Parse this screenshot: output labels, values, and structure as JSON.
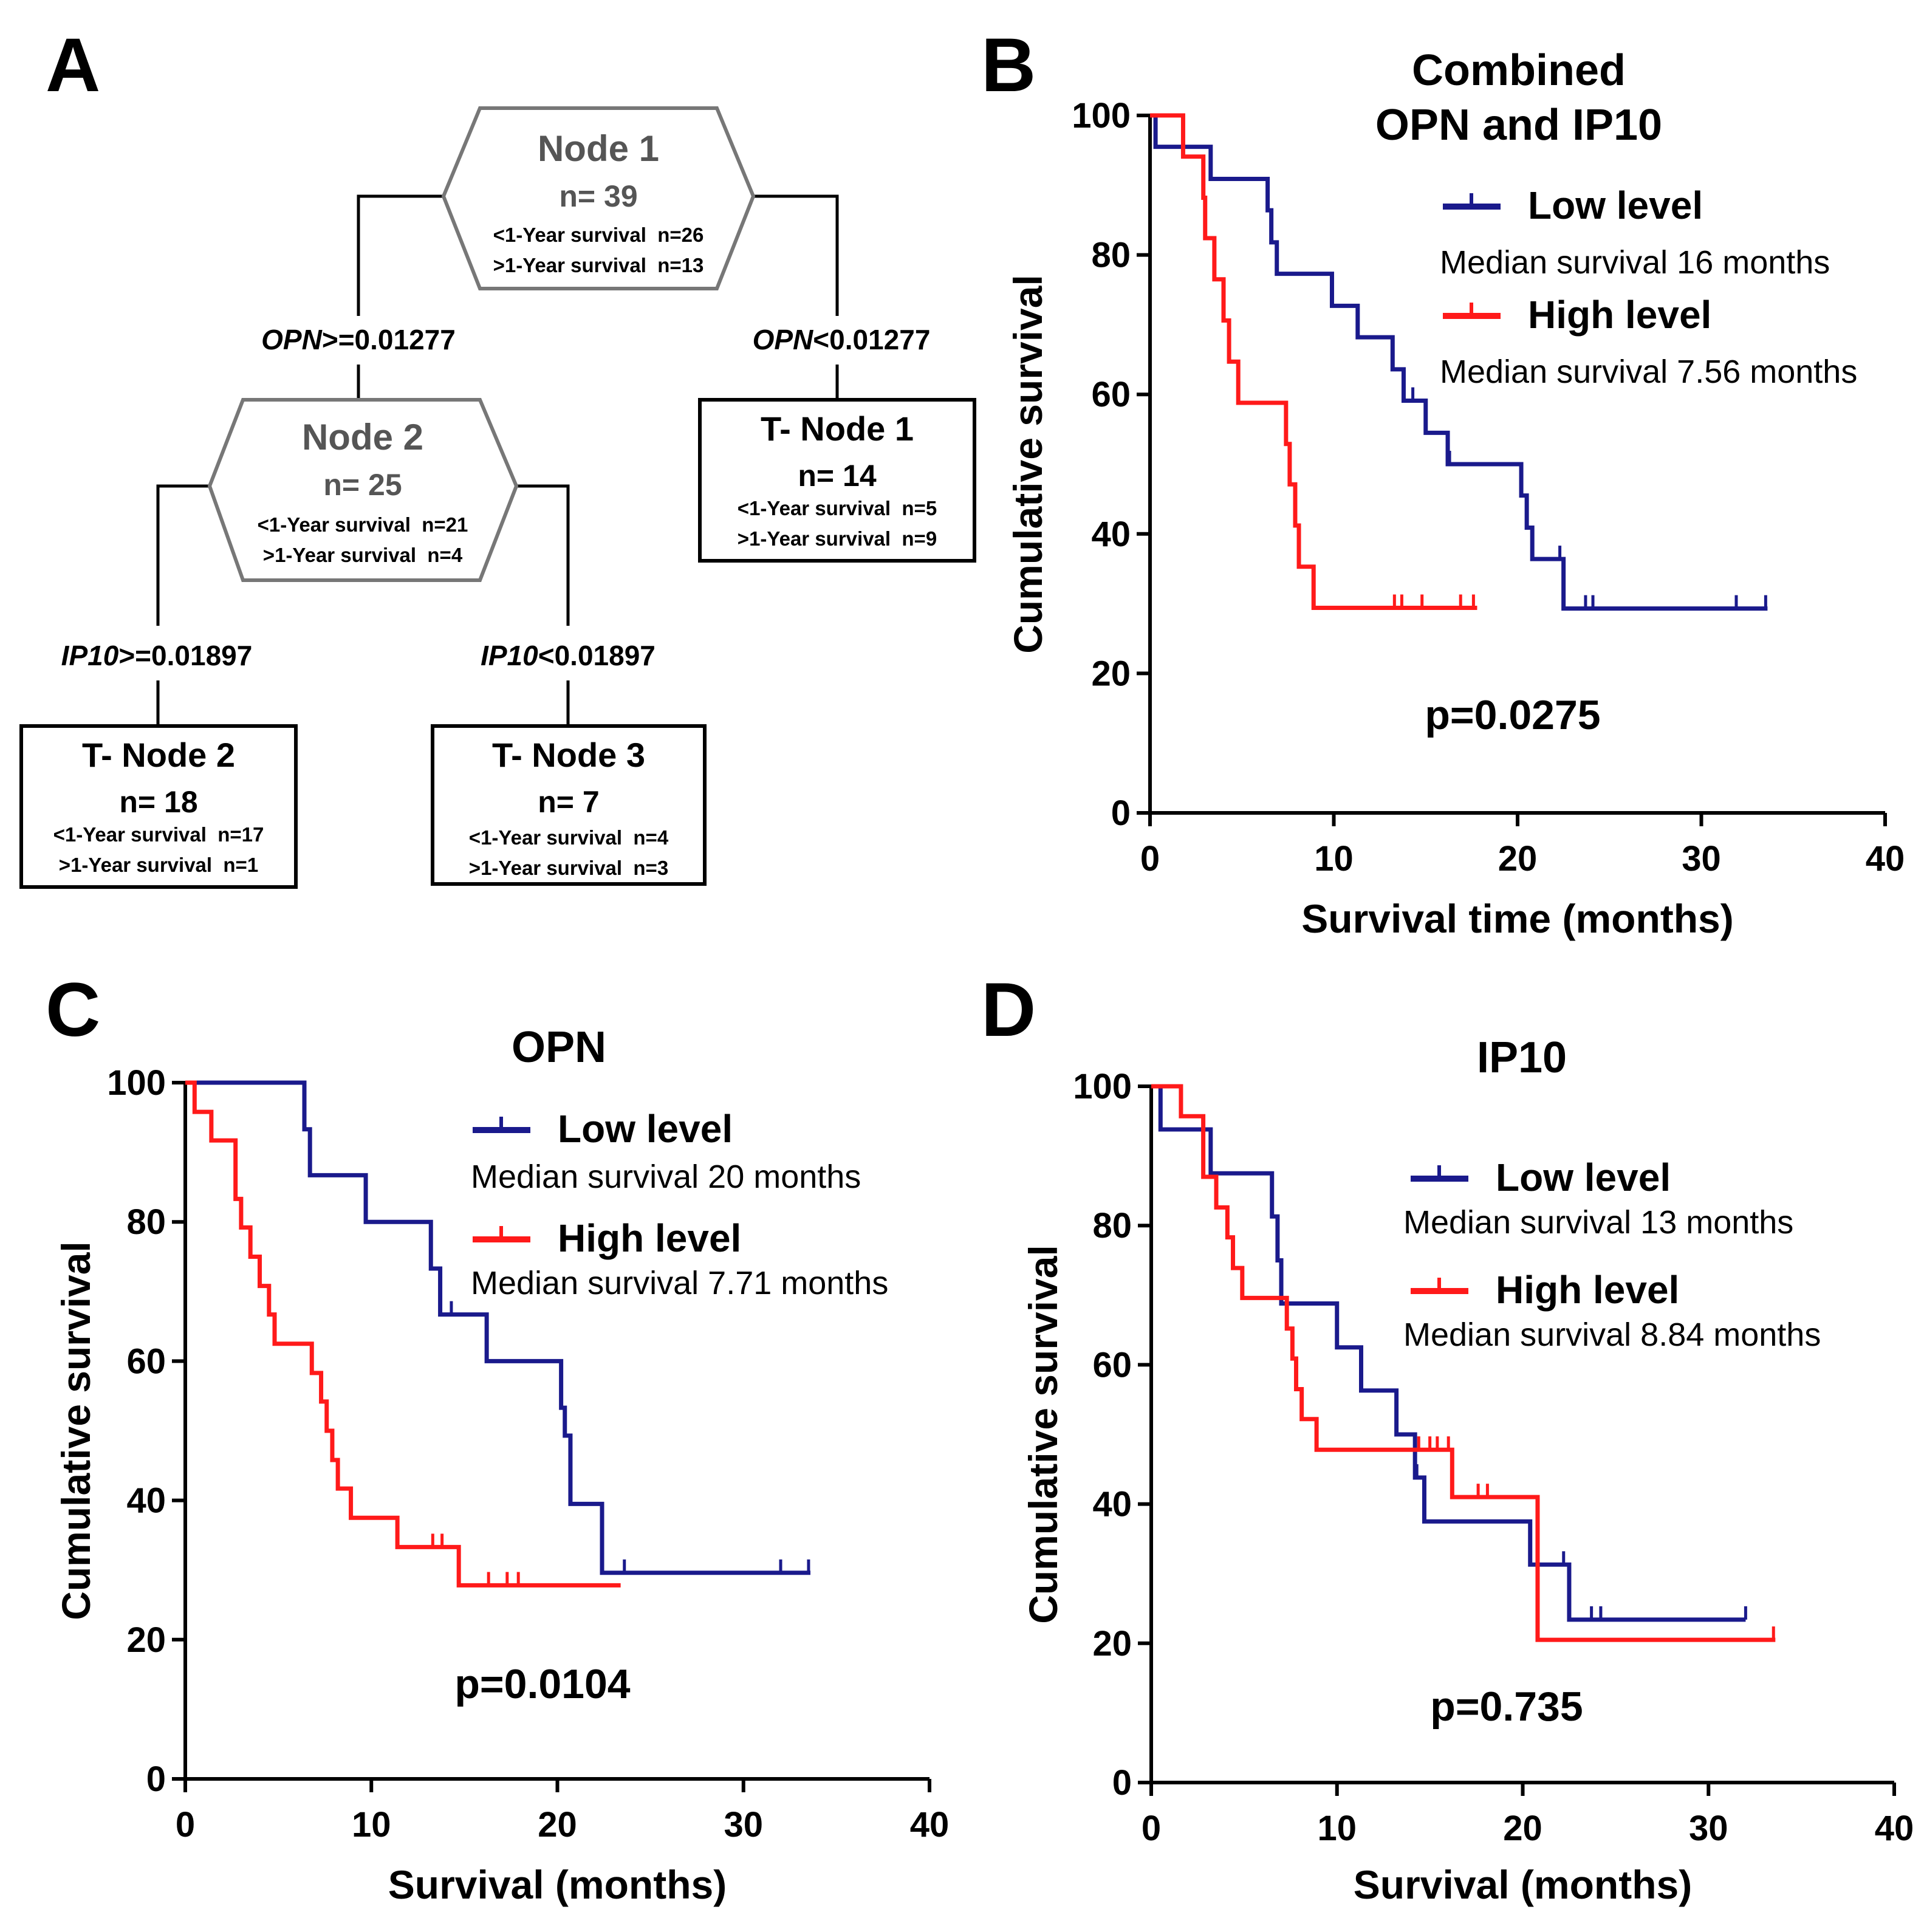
{
  "panel_a": {
    "letter": "A",
    "nodes": [
      {
        "title": "Node 1",
        "n": "n= 39",
        "line1": "<1-Year survival  n=26",
        "line2": ">1-Year survival  n=13"
      },
      {
        "title": "Node 2",
        "n": "n= 25",
        "line1": "<1-Year survival  n=21",
        "line2": ">1-Year survival  n=4"
      }
    ],
    "terminals": [
      {
        "title": "T- Node 1",
        "n": "n= 14",
        "line1": "<1-Year survival  n=5",
        "line2": ">1-Year survival  n=9"
      },
      {
        "title": "T- Node 2",
        "n": "n= 18",
        "line1": "<1-Year survival  n=17",
        "line2": ">1-Year survival  n=1"
      },
      {
        "title": "T- Node 3",
        "n": "n= 7",
        "line1": "<1-Year survival  n=4",
        "line2": ">1-Year survival  n=3"
      }
    ],
    "splits": [
      {
        "var": "OPN",
        "rule": ">=0.01277"
      },
      {
        "var": "OPN",
        "rule": "<0.01277"
      },
      {
        "var": "IP10",
        "rule": ">=0.01897"
      },
      {
        "var": "IP10",
        "rule": "<0.01897"
      }
    ]
  },
  "colors": {
    "low": "#1a1a8c",
    "high": "#ff1a1a",
    "axis": "#000000",
    "node_border": "#777777"
  },
  "chart_data": [
    {
      "letter": "B",
      "type": "line",
      "title_lines": [
        "Combined",
        "OPN and IP10"
      ],
      "xlabel": "Survival time (months)",
      "ylabel": "Cumulative survival",
      "xlim": [
        0,
        40
      ],
      "ylim": [
        0,
        100
      ],
      "xticks": [
        "0",
        "10",
        "20",
        "30",
        "40"
      ],
      "yticks": [
        "0",
        "20",
        "40",
        "60",
        "80",
        "100"
      ],
      "p_value": "p=0.0275",
      "series": [
        {
          "name": "Low level",
          "median": "Median survival 16 months",
          "color": "low",
          "steps": [
            [
              0,
              100
            ],
            [
              0.3,
              95.5
            ],
            [
              3.3,
              90.9
            ],
            [
              6.4,
              86.4
            ],
            [
              6.6,
              81.8
            ],
            [
              6.9,
              77.3
            ],
            [
              9.9,
              72.7
            ],
            [
              11.3,
              68.2
            ],
            [
              13.2,
              63.6
            ],
            [
              13.8,
              59.1
            ],
            [
              15.0,
              54.5
            ],
            [
              16.2,
              50.0
            ],
            [
              20.2,
              45.5
            ],
            [
              20.5,
              40.9
            ],
            [
              20.8,
              36.4
            ],
            [
              22.5,
              29.3
            ]
          ],
          "end": 33.6,
          "censor": [
            14.3,
            16.3,
            22.3,
            23.7,
            24.1,
            31.9,
            33.5
          ]
        },
        {
          "name": "High level",
          "median": "Median survival 7.56 months",
          "color": "high",
          "steps": [
            [
              0,
              100
            ],
            [
              1.8,
              94.1
            ],
            [
              2.9,
              88.2
            ],
            [
              3.0,
              82.4
            ],
            [
              3.5,
              76.5
            ],
            [
              4.0,
              70.6
            ],
            [
              4.3,
              64.7
            ],
            [
              4.8,
              58.8
            ],
            [
              7.4,
              52.9
            ],
            [
              7.6,
              47.1
            ],
            [
              7.9,
              41.2
            ],
            [
              8.1,
              35.3
            ],
            [
              8.9,
              29.4
            ]
          ],
          "end": 17.8,
          "censor": [
            13.3,
            13.7,
            14.8,
            16.9,
            17.6
          ]
        }
      ]
    },
    {
      "letter": "C",
      "type": "line",
      "title_lines": [
        "OPN"
      ],
      "xlabel": "Survival (months)",
      "ylabel": "Cumulative survival",
      "xlim": [
        0,
        40
      ],
      "ylim": [
        0,
        100
      ],
      "xticks": [
        "0",
        "10",
        "20",
        "30",
        "40"
      ],
      "yticks": [
        "0",
        "20",
        "40",
        "60",
        "80",
        "100"
      ],
      "p_value": "p=0.0104",
      "series": [
        {
          "name": "Low level",
          "median": "Median survival 20 months",
          "color": "low",
          "steps": [
            [
              0,
              100
            ],
            [
              6.4,
              93.3
            ],
            [
              6.7,
              86.7
            ],
            [
              9.7,
              80.0
            ],
            [
              13.2,
              73.3
            ],
            [
              13.7,
              66.7
            ],
            [
              16.2,
              60.0
            ],
            [
              20.2,
              53.3
            ],
            [
              20.4,
              49.3
            ],
            [
              20.7,
              39.5
            ],
            [
              22.4,
              29.6
            ]
          ],
          "end": 33.6,
          "censor": [
            14.3,
            23.6,
            32.0,
            33.5
          ]
        },
        {
          "name": "High level",
          "median": "Median survival 7.71 months",
          "color": "high",
          "steps": [
            [
              0,
              100
            ],
            [
              0.5,
              95.8
            ],
            [
              1.4,
              91.7
            ],
            [
              2.7,
              83.3
            ],
            [
              3.0,
              79.2
            ],
            [
              3.5,
              75.0
            ],
            [
              4.0,
              70.8
            ],
            [
              4.5,
              66.7
            ],
            [
              4.8,
              62.5
            ],
            [
              6.8,
              58.3
            ],
            [
              7.3,
              54.2
            ],
            [
              7.6,
              50.0
            ],
            [
              7.9,
              45.8
            ],
            [
              8.2,
              41.7
            ],
            [
              8.9,
              37.5
            ],
            [
              11.4,
              33.3
            ],
            [
              14.7,
              27.8
            ]
          ],
          "end": 23.4,
          "censor": [
            13.3,
            13.8,
            16.3,
            17.3,
            17.9
          ]
        }
      ]
    },
    {
      "letter": "D",
      "type": "line",
      "title_lines": [
        "IP10"
      ],
      "xlabel": "Survival (months)",
      "ylabel": "Cumulative survival",
      "xlim": [
        0,
        40
      ],
      "ylim": [
        0,
        100
      ],
      "xticks": [
        "0",
        "10",
        "20",
        "30",
        "40"
      ],
      "yticks": [
        "0",
        "20",
        "40",
        "60",
        "80",
        "100"
      ],
      "p_value": "p=0.735",
      "series": [
        {
          "name": "Low level",
          "median": "Median survival 13 months",
          "color": "low",
          "steps": [
            [
              0,
              100
            ],
            [
              0.5,
              93.8
            ],
            [
              3.2,
              87.5
            ],
            [
              6.5,
              81.3
            ],
            [
              6.8,
              75.0
            ],
            [
              7.0,
              68.8
            ],
            [
              10.0,
              62.5
            ],
            [
              11.3,
              56.3
            ],
            [
              13.2,
              50.0
            ],
            [
              14.2,
              43.8
            ],
            [
              14.7,
              37.5
            ],
            [
              20.4,
              31.3
            ],
            [
              22.5,
              23.4
            ]
          ],
          "end": 32.0,
          "censor": [
            14.3,
            22.2,
            23.7,
            24.2,
            32.0
          ]
        },
        {
          "name": "High level",
          "median": "Median survival 8.84 months",
          "color": "high",
          "steps": [
            [
              0,
              100
            ],
            [
              1.6,
              95.7
            ],
            [
              2.8,
              87.0
            ],
            [
              3.5,
              82.6
            ],
            [
              4.1,
              78.3
            ],
            [
              4.4,
              73.9
            ],
            [
              4.9,
              69.6
            ],
            [
              7.3,
              65.2
            ],
            [
              7.6,
              60.9
            ],
            [
              7.8,
              56.5
            ],
            [
              8.1,
              52.2
            ],
            [
              8.9,
              47.8
            ],
            [
              16.2,
              41.0
            ],
            [
              20.8,
              20.5
            ]
          ],
          "end": 33.6,
          "censor": [
            14.4,
            15.0,
            15.4,
            16.0,
            17.6,
            18.1,
            33.5
          ]
        }
      ]
    }
  ]
}
